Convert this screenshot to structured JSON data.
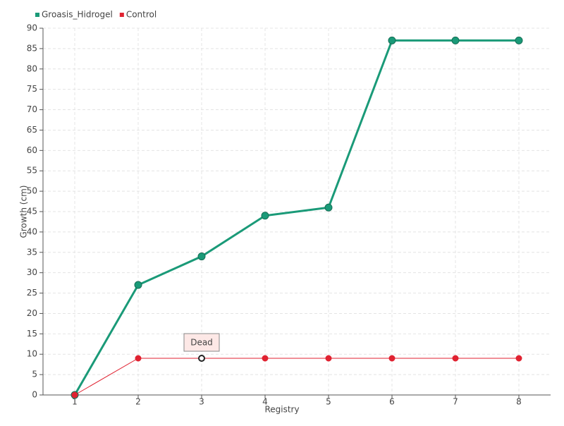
{
  "chart_data": {
    "type": "line",
    "x_label": "Registry",
    "y_label": "Growth (cm)",
    "categories": [
      "1",
      "2",
      "3",
      "4",
      "5",
      "6",
      "7",
      "8"
    ],
    "series": [
      {
        "name": "Groasis_Hidrogel",
        "color": "#1a9a78",
        "values": [
          0,
          27,
          34,
          44,
          46,
          87,
          87,
          87
        ]
      },
      {
        "name": "Control",
        "color": "#e02231",
        "values": [
          0,
          9,
          9,
          9,
          9,
          9,
          9,
          9
        ],
        "point_labels": [
          null,
          null,
          "Dead",
          null,
          null,
          null,
          null,
          null
        ]
      }
    ],
    "ylim": [
      0,
      90
    ],
    "yticks": [
      0,
      5,
      10,
      15,
      20,
      25,
      30,
      35,
      40,
      45,
      50,
      55,
      60,
      65,
      70,
      75,
      80,
      85,
      90
    ],
    "grid": true,
    "legend": "top-left"
  }
}
